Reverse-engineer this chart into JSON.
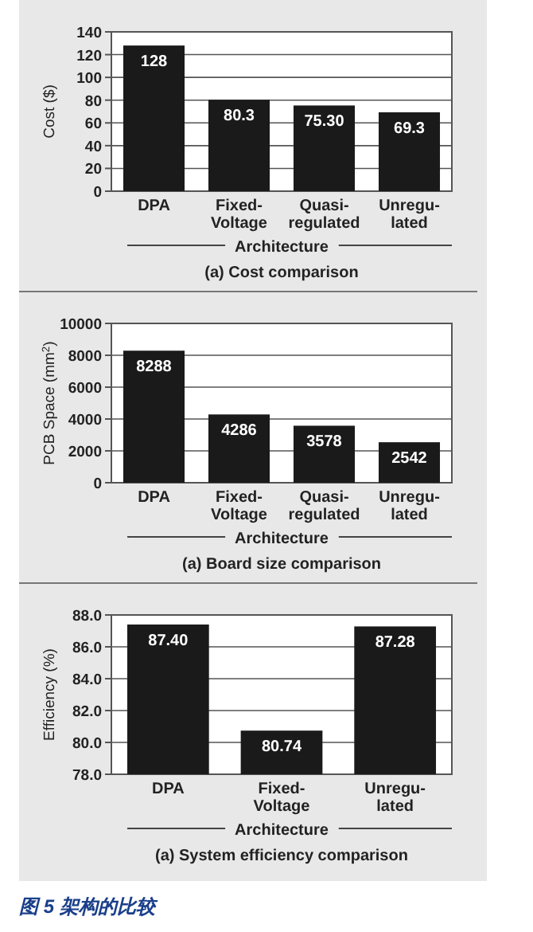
{
  "chart_data": [
    {
      "type": "bar",
      "title": "(a) Cost comparison",
      "xlabel": "Architecture",
      "ylabel": "Cost ($)",
      "categories": [
        "DPA",
        "Fixed-\nVoltage",
        "Quasi-\nregulated",
        "Unregu-\nlated"
      ],
      "values": [
        128,
        80.3,
        75.3,
        69.3
      ],
      "value_labels": [
        "128",
        "80.3",
        "75.30",
        "69.3"
      ],
      "color": "#1a1a1a",
      "ylim": [
        0,
        140
      ],
      "yticks": [
        0,
        20,
        40,
        60,
        80,
        100,
        120,
        140
      ],
      "grid": "y"
    },
    {
      "type": "bar",
      "title": "(a) Board size comparison",
      "xlabel": "Architecture",
      "ylabel": "PCB Space (mm$^{2}$)",
      "categories": [
        "DPA",
        "Fixed-\nVoltage",
        "Quasi-\nregulated",
        "Unregu-\nlated"
      ],
      "values": [
        8288,
        4286,
        3578,
        2542
      ],
      "data_labels": true,
      "color": "#1a1a1a",
      "ylim": [
        0,
        10000
      ],
      "yticks": [
        0,
        2000,
        4000,
        6000,
        8000,
        10000
      ],
      "grid": "y"
    },
    {
      "type": "bar",
      "title": "(a) System efficiency comparison",
      "xlabel": "Architecture",
      "ylabel": "Efficiency (%)",
      "categories": [
        "DPA",
        "Fixed-\nVoltage",
        "Unregu-\nlated"
      ],
      "values": [
        87.4,
        80.74,
        87.28
      ],
      "value_labels": [
        "87.40",
        "80.74",
        "87.28"
      ],
      "color": "#1a1a1a",
      "ylim": [
        78,
        88
      ],
      "yticks": [
        {
          "value": 78,
          "label": "78.0"
        },
        {
          "value": 80,
          "label": "80.0"
        },
        {
          "value": 82,
          "label": "82.0"
        },
        {
          "value": 84,
          "label": "84.0"
        },
        {
          "value": 86,
          "label": "86.0"
        },
        {
          "value": 88,
          "label": "88.0"
        }
      ],
      "grid": "y",
      "annotations": [
        "图 5 架构的比较"
      ]
    }
  ]
}
